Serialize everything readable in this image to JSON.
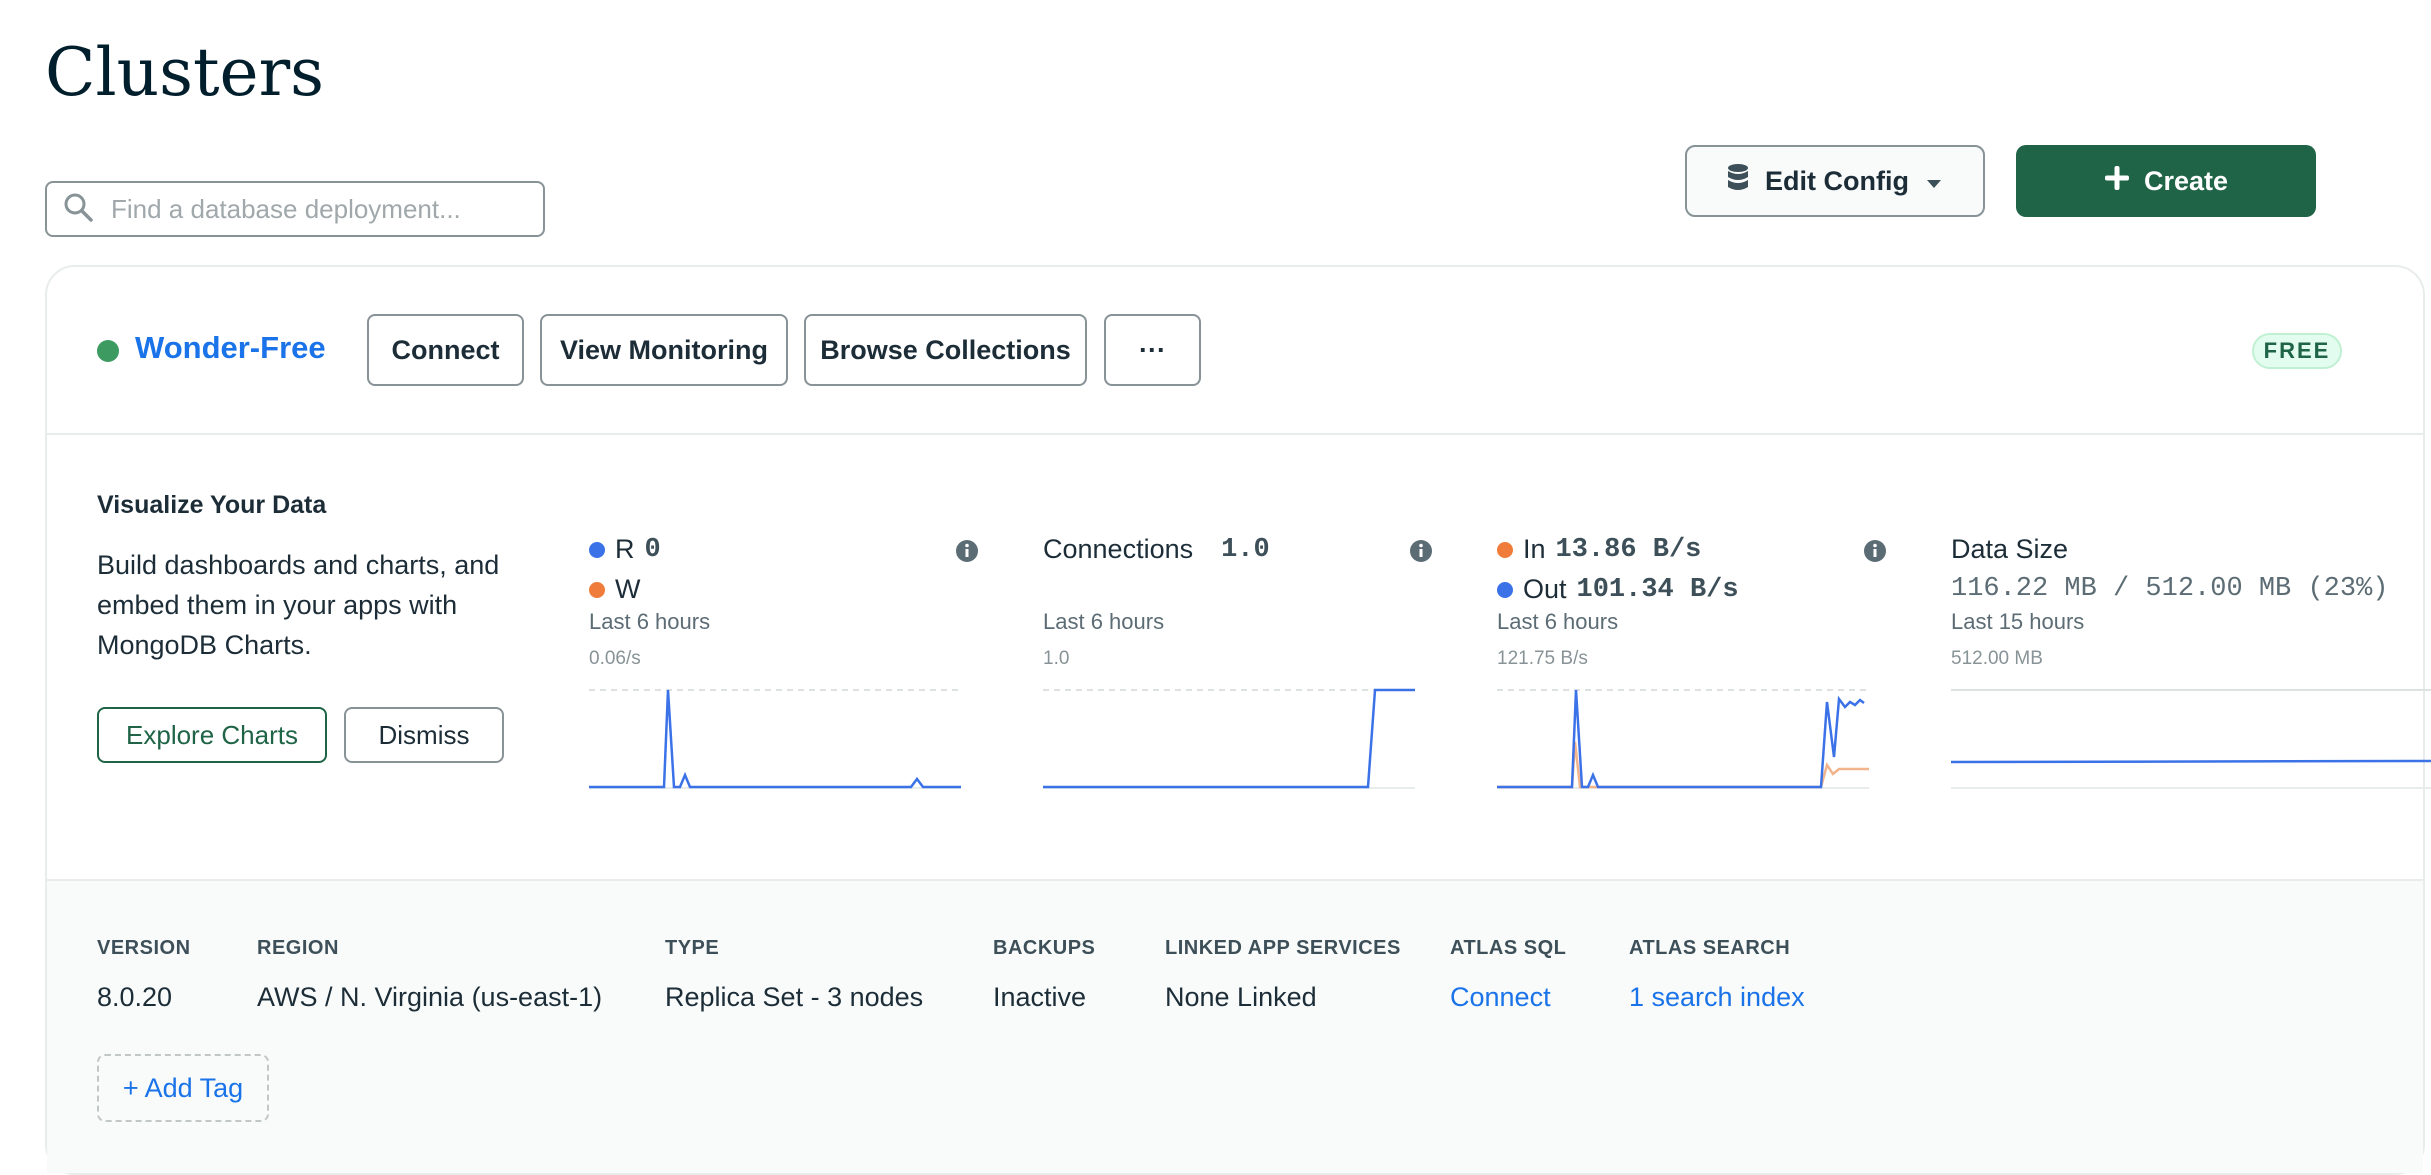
{
  "page": {
    "title": "Clusters"
  },
  "search": {
    "placeholder": "Find a database deployment..."
  },
  "toolbar": {
    "edit_config_label": "Edit Config",
    "create_label": "Create"
  },
  "cluster": {
    "name": "Wonder-Free",
    "status_color": "#3d9b61",
    "tier_badge": "FREE",
    "actions": {
      "connect": "Connect",
      "view_monitoring": "View Monitoring",
      "browse_collections": "Browse Collections",
      "more": "···"
    },
    "visualize": {
      "title": "Visualize Your Data",
      "description": "Build dashboards and charts, and embed them in your apps with MongoDB Charts.",
      "explore_label": "Explore Charts",
      "dismiss_label": "Dismiss"
    },
    "metrics": {
      "rw": {
        "r_label": "R",
        "r_value": "0",
        "w_label": "W",
        "period": "Last 6 hours",
        "y_max": "0.06/s",
        "r_color": "#3b72e8",
        "w_color": "#ef7c3a"
      },
      "connections": {
        "label": "Connections",
        "value": "1.0",
        "period": "Last 6 hours",
        "y_max": "1.0"
      },
      "network": {
        "in_label": "In",
        "in_value": "13.86 B/s",
        "out_label": "Out",
        "out_value": "101.34 B/s",
        "period": "Last 6 hours",
        "y_max": "121.75 B/s"
      },
      "data_size": {
        "label": "Data Size",
        "value": "116.22 MB / 512.00 MB (23%)",
        "period": "Last 15 hours",
        "y_max": "512.00 MB"
      }
    },
    "details": {
      "version": {
        "label": "VERSION",
        "value": "8.0.20"
      },
      "region": {
        "label": "REGION",
        "value": "AWS / N. Virginia (us-east-1)"
      },
      "type": {
        "label": "TYPE",
        "value": "Replica Set - 3 nodes"
      },
      "backups": {
        "label": "BACKUPS",
        "value": "Inactive"
      },
      "linked": {
        "label": "LINKED APP SERVICES",
        "value": "None Linked"
      },
      "atlas_sql": {
        "label": "ATLAS SQL",
        "value": "Connect"
      },
      "atlas_search": {
        "label": "ATLAS SEARCH",
        "value": "1 search index"
      }
    },
    "add_tag_label": "+ Add Tag"
  },
  "icons": {
    "search": "search-icon",
    "database": "database-icon",
    "caret": "caret-down-icon",
    "plus": "plus-icon",
    "info": "info-icon"
  },
  "colors": {
    "accent_green": "#1f6446",
    "link_blue": "#1a73e8",
    "series_blue": "#3b72e8",
    "series_orange": "#ef7c3a"
  }
}
